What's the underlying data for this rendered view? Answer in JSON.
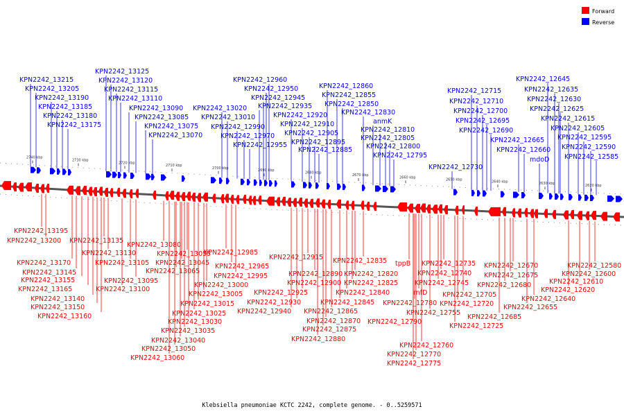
{
  "caption": "Klebsiella pneumoniae KCTC 2242, complete genome. - 0..5259571",
  "legend": {
    "forward": {
      "label": "Forward",
      "color": "#ff0000"
    },
    "reverse": {
      "label": "Reverse",
      "color": "#0000ff"
    }
  },
  "backbone_color": "#555555",
  "ticks": [
    "2740 kbp",
    "2730 kbp",
    "2720 kbp",
    "2710 kbp",
    "2700 kbp",
    "2690 kbp",
    "2680 kbp",
    "2670 kbp",
    "2660 kbp",
    "2650 kbp",
    "2640 kbp",
    "2630 kbp",
    "2620 kbp"
  ],
  "reverse_labels": [
    "KPN2242_13215",
    "KPN2242_13205",
    "KPN2242_13190",
    "KPN2242_13185",
    "KPN2242_13180",
    "KPN2242_13175",
    "KPN2242_13125",
    "KPN2242_13120",
    "KPN2242_13115",
    "KPN2242_13110",
    "KPN2242_13090",
    "KPN2242_13085",
    "KPN2242_13075",
    "KPN2242_13070",
    "KPN2242_12960",
    "KPN2242_12950",
    "KPN2242_12945",
    "KPN2242_12935",
    "KPN2242_13020",
    "KPN2242_13010",
    "KPN2242_12990",
    "KPN2242_12970",
    "KPN2242_12955",
    "KPN2242_12920",
    "KPN2242_12910",
    "KPN2242_12905",
    "KPN2242_12895",
    "KPN2242_12885",
    "KPN2242_12860",
    "KPN2242_12855",
    "KPN2242_12850",
    "KPN2242_12830",
    "anmK",
    "KPN2242_12810",
    "KPN2242_12805",
    "KPN2242_12800",
    "KPN2242_12795",
    "KPN2242_12730",
    "KPN2242_12715",
    "KPN2242_12710",
    "KPN2242_12700",
    "KPN2242_12695",
    "KPN2242_12690",
    "KPN2242_12665",
    "KPN2242_12660",
    "mdoD",
    "KPN2242_12645",
    "KPN2242_12635",
    "KPN2242_12630",
    "KPN2242_12625",
    "KPN2242_12615",
    "KPN2242_12605",
    "KPN2242_12595",
    "KPN2242_12590",
    "KPN2242_12585"
  ],
  "forward_labels": [
    "KPN2242_13195",
    "KPN2242_13200",
    "KPN2242_13135",
    "KPN2242_13130",
    "KPN2242_13170",
    "KPN2242_13145",
    "KPN2242_13155",
    "KPN2242_13165",
    "KPN2242_13140",
    "KPN2242_13150",
    "KPN2242_13160",
    "KPN2242_13080",
    "KPN2242_13105",
    "KPN2242_13095",
    "KPN2242_13100",
    "KPN2242_13055",
    "KPN2242_13045",
    "KPN2242_13065",
    "KPN2242_13000",
    "KPN2242_13005",
    "KPN2242_13015",
    "KPN2242_13025",
    "KPN2242_13030",
    "KPN2242_13035",
    "KPN2242_13040",
    "KPN2242_13050",
    "KPN2242_13060",
    "KPN2242_12985",
    "KPN2242_12965",
    "KPN2242_12995",
    "KPN2242_12915",
    "KPN2242_12890",
    "KPN2242_12900",
    "KPN2242_12925",
    "KPN2242_12930",
    "KPN2242_12940",
    "KPN2242_12835",
    "KPN2242_12820",
    "KPN2242_12825",
    "KPN2242_12840",
    "KPN2242_12845",
    "KPN2242_12865",
    "KPN2242_12870",
    "KPN2242_12875",
    "KPN2242_12880",
    "tppB",
    "rnfD",
    "KPN2242_12780",
    "KPN2242_12790",
    "KPN2242_12755",
    "KPN2242_12760",
    "KPN2242_12770",
    "KPN2242_12775",
    "KPN2242_12735",
    "KPN2242_12740",
    "KPN2242_12745",
    "KPN2242_12705",
    "KPN2242_12720",
    "KPN2242_12725",
    "KPN2242_12670",
    "KPN2242_12675",
    "KPN2242_12680",
    "KPN2242_12685",
    "KPN2242_12640",
    "KPN2242_12655",
    "KPN2242_12580",
    "KPN2242_12600",
    "KPN2242_12610",
    "KPN2242_12620"
  ]
}
